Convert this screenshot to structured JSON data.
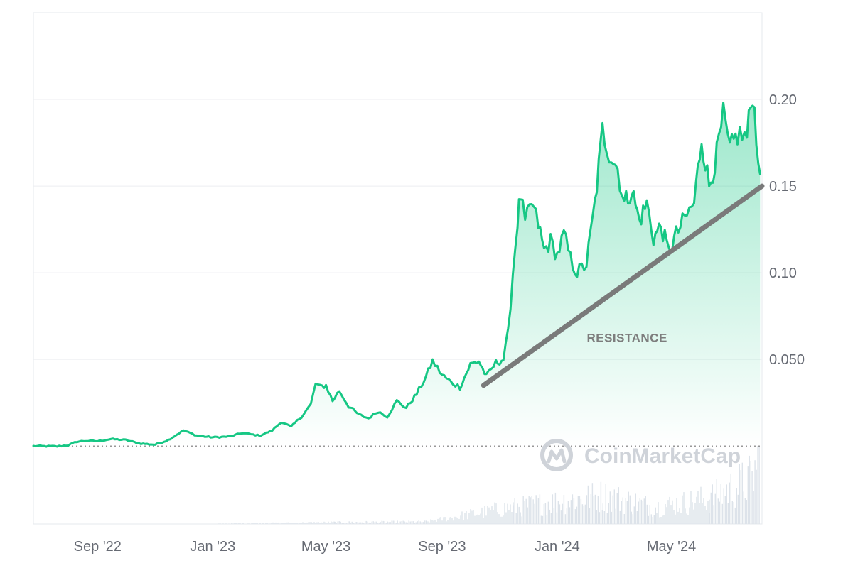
{
  "chart_data": {
    "type": "area",
    "y_ticks": [
      {
        "value": 0.2,
        "label": "0.20"
      },
      {
        "value": 0.15,
        "label": "0.15"
      },
      {
        "value": 0.1,
        "label": "0.10"
      },
      {
        "value": 0.05,
        "label": "0.050"
      }
    ],
    "x_ticks": [
      {
        "date": "2022-09-01",
        "label": "Sep '22"
      },
      {
        "date": "2023-01-01",
        "label": "Jan '23"
      },
      {
        "date": "2023-05-01",
        "label": "May '23"
      },
      {
        "date": "2023-09-01",
        "label": "Sep '23"
      },
      {
        "date": "2024-01-01",
        "label": "Jan '24"
      },
      {
        "date": "2024-05-01",
        "label": "May '24"
      }
    ],
    "xlim": [
      "2022-06-25",
      "2024-08-05"
    ],
    "ylim": [
      -0.045,
      0.25
    ],
    "baseline": 0.0,
    "grid": true,
    "series": [
      {
        "color": "#16c784",
        "points": [
          [
            "2022-06-25",
            0.0
          ],
          [
            "2022-07-20",
            -0.0002
          ],
          [
            "2022-08-01",
            0.0005
          ],
          [
            "2022-08-10",
            0.0025
          ],
          [
            "2022-08-20",
            0.003
          ],
          [
            "2022-09-01",
            0.0028
          ],
          [
            "2022-09-15",
            0.004
          ],
          [
            "2022-10-01",
            0.0035
          ],
          [
            "2022-10-15",
            0.0015
          ],
          [
            "2022-11-01",
            0.0008
          ],
          [
            "2022-11-15",
            0.0035
          ],
          [
            "2022-12-01",
            0.009
          ],
          [
            "2022-12-15",
            0.006
          ],
          [
            "2023-01-01",
            0.005
          ],
          [
            "2023-01-20",
            0.0055
          ],
          [
            "2023-02-01",
            0.0075
          ],
          [
            "2023-02-20",
            0.006
          ],
          [
            "2023-03-05",
            0.009
          ],
          [
            "2023-03-15",
            0.014
          ],
          [
            "2023-03-25",
            0.011
          ],
          [
            "2023-04-05",
            0.017
          ],
          [
            "2023-04-15",
            0.024
          ],
          [
            "2023-04-20",
            0.036
          ],
          [
            "2023-04-25",
            0.034
          ],
          [
            "2023-05-01",
            0.035
          ],
          [
            "2023-05-08",
            0.026
          ],
          [
            "2023-05-15",
            0.032
          ],
          [
            "2023-05-25",
            0.023
          ],
          [
            "2023-06-05",
            0.018
          ],
          [
            "2023-06-15",
            0.016
          ],
          [
            "2023-06-25",
            0.02
          ],
          [
            "2023-07-05",
            0.017
          ],
          [
            "2023-07-15",
            0.026
          ],
          [
            "2023-07-25",
            0.022
          ],
          [
            "2023-08-05",
            0.03
          ],
          [
            "2023-08-15",
            0.04
          ],
          [
            "2023-08-22",
            0.049
          ],
          [
            "2023-09-01",
            0.041
          ],
          [
            "2023-09-10",
            0.037
          ],
          [
            "2023-09-20",
            0.034
          ],
          [
            "2023-10-01",
            0.047
          ],
          [
            "2023-10-10",
            0.049
          ],
          [
            "2023-10-18",
            0.04
          ],
          [
            "2023-10-28",
            0.048
          ],
          [
            "2023-11-05",
            0.05
          ],
          [
            "2023-11-10",
            0.065
          ],
          [
            "2023-11-15",
            0.1
          ],
          [
            "2023-11-20",
            0.13
          ],
          [
            "2023-11-23",
            0.145
          ],
          [
            "2023-11-28",
            0.128
          ],
          [
            "2023-12-05",
            0.14
          ],
          [
            "2023-12-12",
            0.128
          ],
          [
            "2023-12-18",
            0.113
          ],
          [
            "2023-12-25",
            0.118
          ],
          [
            "2024-01-01",
            0.11
          ],
          [
            "2024-01-08",
            0.122
          ],
          [
            "2024-01-15",
            0.108
          ],
          [
            "2024-01-22",
            0.1
          ],
          [
            "2024-02-01",
            0.105
          ],
          [
            "2024-02-10",
            0.14
          ],
          [
            "2024-02-18",
            0.182
          ],
          [
            "2024-02-25",
            0.17
          ],
          [
            "2024-03-05",
            0.16
          ],
          [
            "2024-03-12",
            0.14
          ],
          [
            "2024-03-20",
            0.148
          ],
          [
            "2024-03-28",
            0.13
          ],
          [
            "2024-04-05",
            0.14
          ],
          [
            "2024-04-12",
            0.12
          ],
          [
            "2024-04-20",
            0.127
          ],
          [
            "2024-04-28",
            0.112
          ],
          [
            "2024-05-06",
            0.122
          ],
          [
            "2024-05-15",
            0.131
          ],
          [
            "2024-05-25",
            0.14
          ],
          [
            "2024-06-02",
            0.178
          ],
          [
            "2024-06-10",
            0.15
          ],
          [
            "2024-06-18",
            0.168
          ],
          [
            "2024-06-25",
            0.19
          ],
          [
            "2024-07-02",
            0.17
          ],
          [
            "2024-07-10",
            0.18
          ],
          [
            "2024-07-20",
            0.178
          ],
          [
            "2024-07-26",
            0.205
          ],
          [
            "2024-07-30",
            0.18
          ],
          [
            "2024-08-03",
            0.157
          ]
        ]
      }
    ],
    "annotations": [
      {
        "text": "RESISTANCE",
        "date": "2024-03-15",
        "value": 0.06
      },
      {
        "type": "trendline",
        "color": "#7a7a7a",
        "from": [
          "2023-10-15",
          0.035
        ],
        "to": [
          "2024-08-05",
          0.15
        ]
      }
    ]
  },
  "volume": {
    "color": "#dde3ea",
    "points": [
      [
        "2022-06-25",
        0.0
      ],
      [
        "2023-01-01",
        0.0001
      ],
      [
        "2023-04-15",
        0.0005
      ],
      [
        "2023-05-10",
        0.0006
      ],
      [
        "2023-08-15",
        0.0008
      ],
      [
        "2023-11-15",
        0.006
      ],
      [
        "2023-12-10",
        0.007
      ],
      [
        "2024-02-18",
        0.01
      ],
      [
        "2024-04-15",
        0.006
      ],
      [
        "2024-06-10",
        0.009
      ],
      [
        "2024-07-25",
        0.016
      ],
      [
        "2024-08-03",
        0.025
      ]
    ]
  },
  "watermark": {
    "text": "CoinMarketCap",
    "icon": "coinmarketcap-logo-icon"
  }
}
